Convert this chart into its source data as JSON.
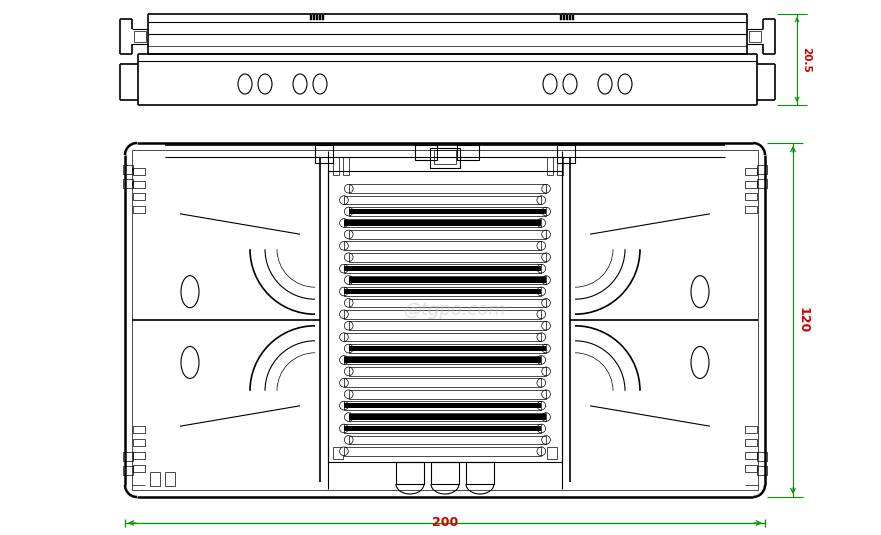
{
  "bg_color": "#ffffff",
  "line_color": "#000000",
  "dim_color_red": "#cc0000",
  "dim_color_green": "#009900",
  "watermark": "@tgpo.com",
  "dim_20_5": "20.5",
  "dim_120": "120",
  "dim_200": "200",
  "fig_width": 8.81,
  "fig_height": 5.35,
  "dpi": 100
}
